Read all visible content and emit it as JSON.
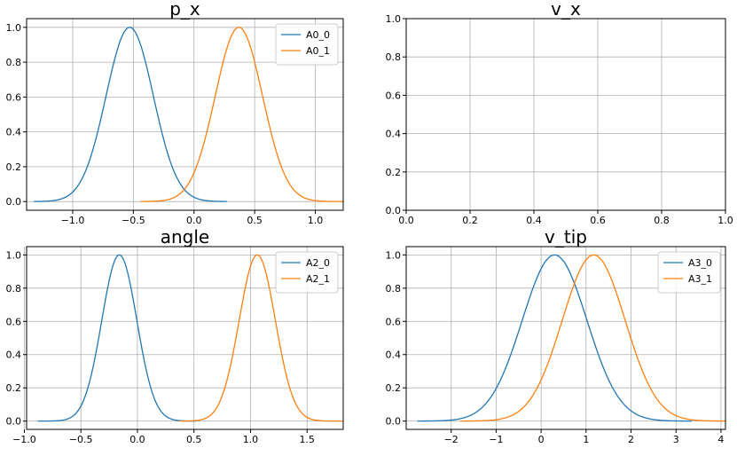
{
  "colors": {
    "series0": "#1f77b4",
    "series1": "#ff7f0e",
    "grid": "#b0b0b0"
  },
  "chart_data": [
    {
      "type": "line",
      "title": "p_x",
      "grid": true,
      "legend": "top-right",
      "xlim": [
        -1.38,
        1.23
      ],
      "ylim": [
        -0.05,
        1.05
      ],
      "xticks": [
        -1.0,
        -0.5,
        0.0,
        0.5,
        1.0
      ],
      "xtick_labels": [
        "−1.0",
        "−0.5",
        "0.0",
        "0.5",
        "1.0"
      ],
      "yticks": [
        0.0,
        0.2,
        0.4,
        0.6,
        0.8,
        1.0
      ],
      "ytick_labels": [
        "0.0",
        "0.2",
        "0.4",
        "0.6",
        "0.8",
        "1.0"
      ],
      "series": [
        {
          "name": "A0_0",
          "mean": -0.53,
          "std": 0.195,
          "x_range": [
            -1.32,
            0.27
          ]
        },
        {
          "name": "A0_1",
          "mean": 0.37,
          "std": 0.195,
          "x_range": [
            -0.44,
            1.23
          ]
        }
      ]
    },
    {
      "type": "line",
      "title": "v_x",
      "grid": true,
      "legend": "none",
      "xlim": [
        0.0,
        1.0
      ],
      "ylim": [
        0.0,
        1.0
      ],
      "xticks": [
        0.0,
        0.2,
        0.4,
        0.6,
        0.8,
        1.0
      ],
      "xtick_labels": [
        "0.0",
        "0.2",
        "0.4",
        "0.6",
        "0.8",
        "1.0"
      ],
      "yticks": [
        0.0,
        0.2,
        0.4,
        0.6,
        0.8,
        1.0
      ],
      "ytick_labels": [
        "0.0",
        "0.2",
        "0.4",
        "0.6",
        "0.8",
        "1.0"
      ],
      "series": []
    },
    {
      "type": "line",
      "title": "angle",
      "grid": true,
      "legend": "top-right",
      "xlim": [
        -0.98,
        1.82
      ],
      "ylim": [
        -0.05,
        1.05
      ],
      "xticks": [
        -1.0,
        -0.5,
        0.0,
        0.5,
        1.0,
        1.5
      ],
      "xtick_labels": [
        "−1.0",
        "−0.5",
        "0.0",
        "0.5",
        "1.0",
        "1.5"
      ],
      "yticks": [
        0.0,
        0.2,
        0.4,
        0.6,
        0.8,
        1.0
      ],
      "ytick_labels": [
        "0.0",
        "0.2",
        "0.4",
        "0.6",
        "0.8",
        "1.0"
      ],
      "series": [
        {
          "name": "A2_0",
          "mean": -0.16,
          "std": 0.155,
          "x_range": [
            -0.88,
            0.52
          ]
        },
        {
          "name": "A2_1",
          "mean": 1.06,
          "std": 0.16,
          "x_range": [
            0.37,
            1.82
          ]
        }
      ]
    },
    {
      "type": "line",
      "title": "v_tip",
      "grid": true,
      "legend": "top-right",
      "xlim": [
        -3.0,
        4.1
      ],
      "ylim": [
        -0.05,
        1.05
      ],
      "xticks": [
        -2,
        -1,
        0,
        1,
        2,
        3,
        4
      ],
      "xtick_labels": [
        "−2",
        "−1",
        "0",
        "1",
        "2",
        "3",
        "4"
      ],
      "yticks": [
        0.0,
        0.2,
        0.4,
        0.6,
        0.8,
        1.0
      ],
      "ytick_labels": [
        "0.0",
        "0.2",
        "0.4",
        "0.6",
        "0.8",
        "1.0"
      ],
      "series": [
        {
          "name": "A3_0",
          "mean": 0.3,
          "std": 0.72,
          "x_range": [
            -2.75,
            3.35
          ]
        },
        {
          "name": "A3_1",
          "mean": 1.17,
          "std": 0.7,
          "x_range": [
            -1.8,
            4.1
          ]
        }
      ]
    }
  ]
}
